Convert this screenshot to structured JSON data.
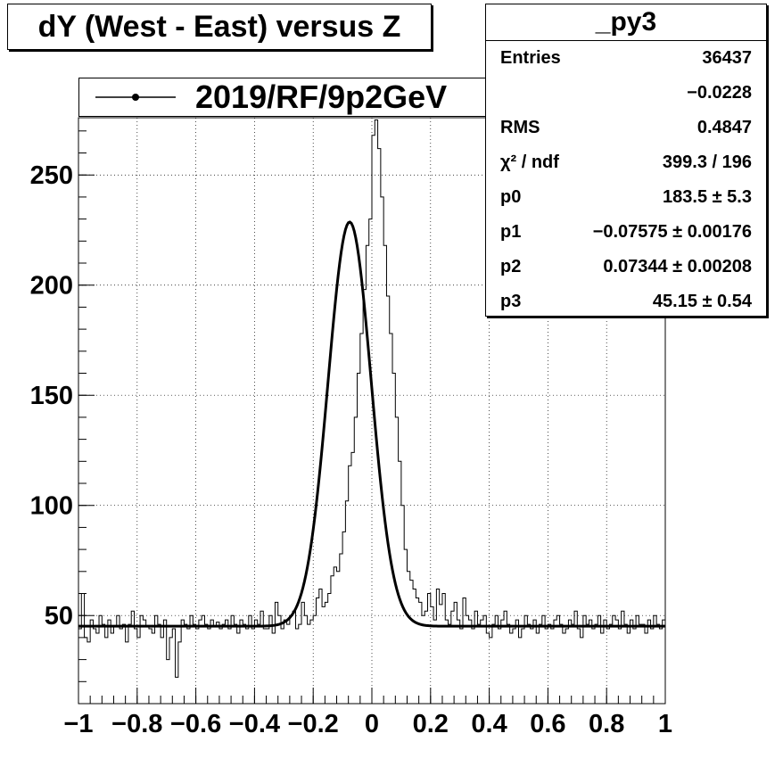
{
  "chart_data": {
    "type": "line",
    "title": "dY (West - East) versus Z",
    "xlim": [
      -1,
      1
    ],
    "ylim": [
      10,
      276
    ],
    "x_ticks": [
      -1,
      -0.8,
      -0.6,
      -0.4,
      -0.2,
      0,
      0.2,
      0.4,
      0.6,
      0.8,
      1
    ],
    "x_tick_labels": [
      "−1",
      "−0.8",
      "−0.6",
      "−0.4",
      "−0.2",
      "0",
      "0.2",
      "0.4",
      "0.6",
      "0.8",
      "1"
    ],
    "y_ticks": [
      50,
      100,
      150,
      200,
      250
    ],
    "y_tick_labels": [
      "50",
      "100",
      "150",
      "200",
      "250"
    ],
    "grid": true,
    "series": [
      {
        "name": "2019/RF/9p2GeV",
        "kind": "histogram",
        "bin_width": 0.01,
        "x_start": -1,
        "values": [
          44,
          60,
          40,
          38,
          48,
          44,
          42,
          50,
          46,
          40,
          48,
          42,
          45,
          50,
          44,
          46,
          38,
          46,
          52,
          44,
          40,
          50,
          48,
          45,
          44,
          42,
          50,
          46,
          40,
          48,
          30,
          40,
          44,
          22,
          38,
          48,
          46,
          44,
          50,
          46,
          44,
          48,
          50,
          46,
          44,
          48,
          45,
          47,
          44,
          46,
          48,
          44,
          50,
          46,
          42,
          48,
          46,
          44,
          50,
          44,
          48,
          46,
          52,
          44,
          44,
          50,
          42,
          56,
          50,
          44,
          48,
          46,
          50,
          52,
          44,
          46,
          56,
          50,
          46,
          48,
          50,
          58,
          62,
          54,
          56,
          60,
          68,
          72,
          70,
          78,
          88,
          102,
          118,
          124,
          140,
          160,
          178,
          198,
          218,
          230,
          268,
          275,
          262,
          240,
          218,
          195,
          178,
          160,
          140,
          120,
          100,
          80,
          70,
          66,
          62,
          58,
          56,
          50,
          52,
          60,
          54,
          48,
          62,
          55,
          60,
          48,
          46,
          52,
          56,
          48,
          44,
          58,
          50,
          48,
          44,
          52,
          46,
          48,
          50,
          42,
          40,
          46,
          50,
          44,
          48,
          52,
          46,
          42,
          44,
          48,
          40,
          44,
          50,
          46,
          44,
          48,
          42,
          46,
          50,
          44,
          46,
          44,
          48,
          50,
          46,
          42,
          44,
          48,
          46,
          52,
          44,
          40,
          50,
          46,
          48,
          44,
          46,
          50,
          42,
          48,
          44,
          46,
          50,
          48,
          44,
          52,
          46,
          42,
          48,
          44,
          50,
          46,
          46,
          42,
          48,
          44,
          50,
          46,
          44,
          48
        ]
      },
      {
        "name": "fit",
        "kind": "gaussian-fit",
        "p0": 183.5,
        "p1": -0.07575,
        "p2": 0.07344,
        "p3": 45.15
      }
    ]
  },
  "title_box": {
    "text": "dY (West - East) versus Z"
  },
  "legend": {
    "label": "2019/RF/9p2GeV"
  },
  "stats": {
    "name": "_py3",
    "rows": [
      {
        "key": "Entries",
        "value": "36437"
      },
      {
        "key": "",
        "value": "−0.0228"
      },
      {
        "key": "RMS",
        "value": "0.4847"
      },
      {
        "key": "χ² / ndf",
        "value": "399.3 / 196"
      },
      {
        "key": "p0",
        "value": "183.5 ± 5.3"
      },
      {
        "key": "p1",
        "value": "−0.07575 ± 0.00176"
      },
      {
        "key": "p2",
        "value": "0.07344 ± 0.00208"
      },
      {
        "key": "p3",
        "value": "45.15 ± 0.54"
      }
    ]
  }
}
